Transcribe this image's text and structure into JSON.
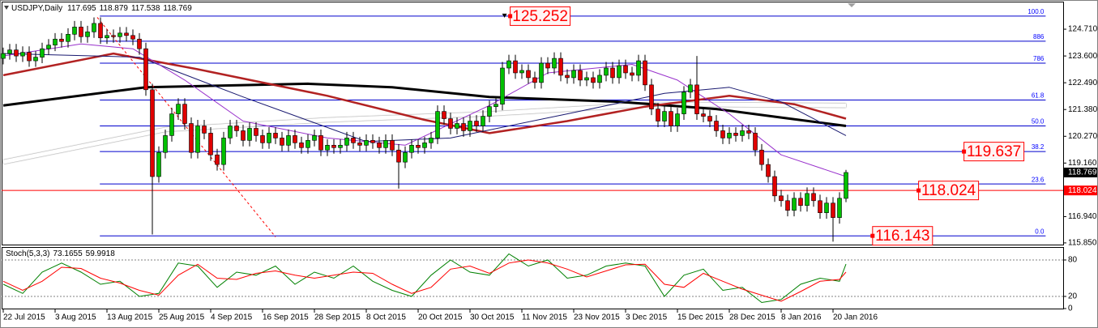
{
  "chart_data": {
    "type": "candlestick",
    "title": "USDJPY,Daily",
    "candles": {
      "up_color": "#00c000",
      "down_color": "#e00000",
      "outline": "#000000",
      "open": [
        123.5,
        123.7,
        123.85,
        123.6,
        123.75,
        123.4,
        123.55,
        123.9,
        124.05,
        124.3,
        124.2,
        124.5,
        124.8,
        124.4,
        124.6,
        124.95,
        124.35,
        124.45,
        124.4,
        124.55,
        124.45,
        124.3,
        123.9,
        122.2,
        118.6,
        119.6,
        120.3,
        121.2,
        121.6,
        120.8,
        119.6,
        120.7,
        120.4,
        119.5,
        119.1,
        120.2,
        120.7,
        120.5,
        120.1,
        120.6,
        120.3,
        120.0,
        120.4,
        120.2,
        119.9,
        120.3,
        120.0,
        119.8,
        120.1,
        120.3,
        119.7,
        119.9,
        119.8,
        119.9,
        120.2,
        120.0,
        119.9,
        120.1,
        120.0,
        119.8,
        120.1,
        119.7,
        119.2,
        119.6,
        119.9,
        119.8,
        120.0,
        120.2,
        121.3,
        121.0,
        120.6,
        120.8,
        120.5,
        120.9,
        120.7,
        121.1,
        121.5,
        121.6,
        123.1,
        123.4,
        122.9,
        123.0,
        122.7,
        122.5,
        123.3,
        123.1,
        123.5,
        122.8,
        122.7,
        123.0,
        122.6,
        122.7,
        122.5,
        122.8,
        123.1,
        122.7,
        123.2,
        122.9,
        122.8,
        123.4,
        122.4,
        121.4,
        120.9,
        121.3,
        120.7,
        121.2,
        122.1,
        122.4,
        121.2,
        121.1,
        120.9,
        120.5,
        120.2,
        120.4,
        120.3,
        120.5,
        120.4,
        119.7,
        119.1,
        118.6,
        117.8,
        117.6,
        117.2,
        117.7,
        117.4,
        117.9,
        117.6,
        117.1,
        117.5,
        116.9,
        117.695
      ],
      "high": [
        123.95,
        124.1,
        124.1,
        124.0,
        124.0,
        123.8,
        124.15,
        124.3,
        124.55,
        124.55,
        124.75,
        125.05,
        125.05,
        124.85,
        125.2,
        125.2,
        124.7,
        124.7,
        124.8,
        124.8,
        124.7,
        124.55,
        124.15,
        122.45,
        119.85,
        120.55,
        121.45,
        121.85,
        121.85,
        121.05,
        120.95,
        120.95,
        120.65,
        119.75,
        120.45,
        120.95,
        120.95,
        120.75,
        120.85,
        120.85,
        120.55,
        120.65,
        120.65,
        120.45,
        120.55,
        120.55,
        120.25,
        120.35,
        120.55,
        120.55,
        120.15,
        120.15,
        120.15,
        120.45,
        120.45,
        120.25,
        120.35,
        120.35,
        120.25,
        120.35,
        120.35,
        119.95,
        119.85,
        120.15,
        120.15,
        120.25,
        120.45,
        121.55,
        121.55,
        121.25,
        121.05,
        121.05,
        121.15,
        121.15,
        121.35,
        121.75,
        121.85,
        123.35,
        123.65,
        123.65,
        123.25,
        123.25,
        122.95,
        123.55,
        123.55,
        123.75,
        123.75,
        123.05,
        123.25,
        123.25,
        122.95,
        122.95,
        123.05,
        123.35,
        123.35,
        123.45,
        123.45,
        123.15,
        123.65,
        123.65,
        122.65,
        121.65,
        121.55,
        121.55,
        121.45,
        122.35,
        122.65,
        123.6,
        121.45,
        121.35,
        121.15,
        120.75,
        120.65,
        120.65,
        120.75,
        120.75,
        120.65,
        119.95,
        119.35,
        118.85,
        118.05,
        117.85,
        117.95,
        117.95,
        118.15,
        118.15,
        117.85,
        117.75,
        117.75,
        117.95,
        118.879
      ],
      "low": [
        123.25,
        123.45,
        123.35,
        123.35,
        123.15,
        123.15,
        123.3,
        123.65,
        123.8,
        123.95,
        123.95,
        124.25,
        124.15,
        124.15,
        124.35,
        124.1,
        124.1,
        124.15,
        124.15,
        124.2,
        124.05,
        123.65,
        121.95,
        116.2,
        118.35,
        119.35,
        120.05,
        120.95,
        120.55,
        119.35,
        119.35,
        120.15,
        119.25,
        118.85,
        118.85,
        119.95,
        120.25,
        119.85,
        119.85,
        120.05,
        119.75,
        119.75,
        119.95,
        119.65,
        119.65,
        119.75,
        119.55,
        119.55,
        119.85,
        119.45,
        119.45,
        119.55,
        119.55,
        119.65,
        119.75,
        119.65,
        119.65,
        119.75,
        119.55,
        119.55,
        119.45,
        118.1,
        118.95,
        119.35,
        119.55,
        119.55,
        119.75,
        119.95,
        120.75,
        120.35,
        120.35,
        120.25,
        120.25,
        120.45,
        120.45,
        120.85,
        121.25,
        121.35,
        122.85,
        122.65,
        122.65,
        122.45,
        122.25,
        122.25,
        122.85,
        122.85,
        122.55,
        122.45,
        122.45,
        122.35,
        122.35,
        122.25,
        122.25,
        122.55,
        122.45,
        122.45,
        122.65,
        122.55,
        122.55,
        122.15,
        121.15,
        120.65,
        120.65,
        120.45,
        120.45,
        120.95,
        121.85,
        120.95,
        120.85,
        120.65,
        120.25,
        119.95,
        119.95,
        120.05,
        120.05,
        120.15,
        119.45,
        118.85,
        118.35,
        117.55,
        117.35,
        116.95,
        116.95,
        117.15,
        117.15,
        117.35,
        116.85,
        116.85,
        115.9,
        116.65,
        117.538
      ],
      "close": [
        123.7,
        123.85,
        123.6,
        123.75,
        123.4,
        123.55,
        123.9,
        124.05,
        124.3,
        124.2,
        124.5,
        124.8,
        124.4,
        124.6,
        124.95,
        124.35,
        124.45,
        124.4,
        124.55,
        124.45,
        124.3,
        123.9,
        122.2,
        118.6,
        119.6,
        120.3,
        121.2,
        121.6,
        120.8,
        119.6,
        120.7,
        120.4,
        119.5,
        119.1,
        120.2,
        120.7,
        120.5,
        120.1,
        120.6,
        120.3,
        120.0,
        120.4,
        120.2,
        119.9,
        120.3,
        120.0,
        119.8,
        120.1,
        120.3,
        119.7,
        119.9,
        119.8,
        119.9,
        120.2,
        120.0,
        119.9,
        120.1,
        120.0,
        119.8,
        120.1,
        119.7,
        119.2,
        119.6,
        119.9,
        119.8,
        120.0,
        120.2,
        121.3,
        121.0,
        120.6,
        120.8,
        120.5,
        120.9,
        120.7,
        121.1,
        121.5,
        121.6,
        123.1,
        123.4,
        122.9,
        123.0,
        122.7,
        122.5,
        123.3,
        123.1,
        123.5,
        122.8,
        122.7,
        123.0,
        122.6,
        122.7,
        122.5,
        122.8,
        123.1,
        122.7,
        123.2,
        122.9,
        122.8,
        123.4,
        122.4,
        121.4,
        120.9,
        121.3,
        120.7,
        121.2,
        122.1,
        122.4,
        121.2,
        121.1,
        120.9,
        120.5,
        120.2,
        120.4,
        120.3,
        120.5,
        120.4,
        119.7,
        119.1,
        118.6,
        117.8,
        117.6,
        117.2,
        117.7,
        117.4,
        117.9,
        117.6,
        117.1,
        117.5,
        116.9,
        117.7,
        118.769
      ]
    },
    "xlim": [
      -0.25,
      163.5
    ],
    "xticks": [
      {
        "value": 0,
        "label": "22 Jul 2015"
      },
      {
        "value": 8,
        "label": "3 Aug 2015"
      },
      {
        "value": 16,
        "label": "13 Aug 2015"
      },
      {
        "value": 24,
        "label": "25 Aug 2015"
      },
      {
        "value": 32,
        "label": "4 Sep 2015"
      },
      {
        "value": 40,
        "label": "16 Sep 2015"
      },
      {
        "value": 48,
        "label": "28 Sep 2015"
      },
      {
        "value": 56,
        "label": "8 Oct 2015"
      },
      {
        "value": 64,
        "label": "20 Oct 2015"
      },
      {
        "value": 72,
        "label": "30 Oct 2015"
      },
      {
        "value": 80,
        "label": "11 Nov 2015"
      },
      {
        "value": 88,
        "label": "23 Nov 2015"
      },
      {
        "value": 96,
        "label": "3 Dec 2015"
      },
      {
        "value": 104,
        "label": "15 Dec 2015"
      },
      {
        "value": 112,
        "label": "28 Dec 2015"
      },
      {
        "value": 120,
        "label": "8 Jan 2016"
      },
      {
        "value": 128,
        "label": "20 Jan 2016"
      }
    ],
    "ylim": [
      115.78,
      125.82
    ],
    "yticks": [
      {
        "value": 124.71,
        "label": "124.710"
      },
      {
        "value": 123.6,
        "label": "123.600"
      },
      {
        "value": 122.49,
        "label": "122.490"
      },
      {
        "value": 121.38,
        "label": "121.380"
      },
      {
        "value": 120.27,
        "label": "120.270"
      },
      {
        "value": 119.16,
        "label": "119.160"
      },
      {
        "value": 116.94,
        "label": "116.940"
      },
      {
        "value": 115.85,
        "label": "115.850"
      }
    ],
    "moving_averages": [
      {
        "color": "#ffffff",
        "width": 5,
        "x": [
          0,
          25,
          50,
          75,
          100,
          130
        ],
        "values": [
          119.2,
          120.55,
          120.95,
          121.2,
          121.6,
          121.55
        ]
      },
      {
        "color": "#000000",
        "width": 3,
        "x": [
          0,
          22,
          47,
          60,
          75,
          95,
          110,
          120,
          130
        ],
        "values": [
          121.55,
          122.3,
          122.45,
          122.3,
          121.9,
          121.7,
          121.4,
          121.05,
          120.7
        ]
      },
      {
        "color": "#b22222",
        "width": 2.5,
        "x": [
          0,
          17,
          30,
          50,
          65,
          75,
          87,
          99,
          112,
          122,
          130
        ],
        "values": [
          122.8,
          123.7,
          123.05,
          121.95,
          120.95,
          120.4,
          120.9,
          121.5,
          121.95,
          121.6,
          121.0
        ]
      },
      {
        "color": "#191970",
        "width": 1,
        "x": [
          0,
          21,
          37,
          56,
          69,
          87,
          102,
          112,
          120,
          130
        ],
        "values": [
          123.7,
          123.55,
          121.9,
          120.05,
          120.2,
          121.2,
          122.05,
          122.3,
          121.7,
          120.3
        ]
      },
      {
        "color": "#9932cc",
        "width": 1,
        "x": [
          0,
          12,
          20,
          28,
          37,
          50,
          62,
          75,
          84,
          97,
          104,
          112,
          120,
          130
        ],
        "values": [
          123.6,
          124.1,
          123.9,
          122.6,
          120.9,
          120.2,
          119.9,
          121.55,
          122.9,
          123.25,
          122.6,
          121.2,
          119.5,
          118.6
        ]
      }
    ],
    "trend_line": {
      "color": "#ff0000",
      "x": [
        14.5,
        42
      ],
      "values": [
        125.2,
        116.1
      ]
    },
    "fibonacci": {
      "color": "#0000cd",
      "x_start": 14.9,
      "x_end": 160.8,
      "levels": [
        {
          "name": "100.0",
          "value": 125.252,
          "box_x": 78.2
        },
        {
          "name": "886",
          "value": 124.213
        },
        {
          "name": "786",
          "value": 123.303
        },
        {
          "name": "61.8",
          "value": 121.772
        },
        {
          "name": "50.0",
          "value": 120.698
        },
        {
          "name": "38.2",
          "value": 119.637,
          "box_x": 148.2
        },
        {
          "name": "23.6",
          "value": 118.293
        },
        {
          "name": "0.0",
          "value": 116.143,
          "box_x": 134.1
        }
      ]
    },
    "horizontal_line": {
      "value": 118.024,
      "color": "#ff0000",
      "box_x": 141.2
    },
    "indicator": {
      "name": "Stoch(5,3,3)",
      "ylim": [
        0,
        100
      ],
      "levels": [
        80,
        20
      ],
      "yticks": [
        80,
        20,
        0
      ],
      "x": [
        0,
        3,
        6,
        9,
        12,
        15,
        18,
        21,
        24,
        27,
        30,
        33,
        36,
        39,
        42,
        45,
        48,
        51,
        54,
        57,
        60,
        63,
        66,
        69,
        72,
        75,
        78,
        81,
        84,
        87,
        90,
        93,
        96,
        99,
        102,
        105,
        108,
        111,
        114,
        117,
        120,
        123,
        126,
        129,
        130
      ],
      "lines": [
        {
          "color": "#008000",
          "values": [
            40,
            25,
            60,
            75,
            60,
            40,
            45,
            20,
            25,
            75,
            70,
            35,
            60,
            55,
            70,
            40,
            60,
            50,
            70,
            45,
            30,
            20,
            55,
            80,
            60,
            55,
            90,
            70,
            80,
            50,
            55,
            70,
            75,
            70,
            20,
            55,
            65,
            30,
            35,
            10,
            15,
            40,
            50,
            45,
            73.1655
          ]
        },
        {
          "color": "#ff0000",
          "values": [
            45,
            30,
            45,
            68,
            66,
            50,
            42,
            30,
            22,
            55,
            73,
            50,
            48,
            58,
            62,
            55,
            50,
            55,
            60,
            58,
            40,
            25,
            35,
            65,
            70,
            58,
            75,
            80,
            75,
            65,
            52,
            62,
            72,
            73,
            40,
            35,
            58,
            45,
            32,
            22,
            12,
            28,
            45,
            48,
            59.9918
          ]
        }
      ]
    }
  }
}
